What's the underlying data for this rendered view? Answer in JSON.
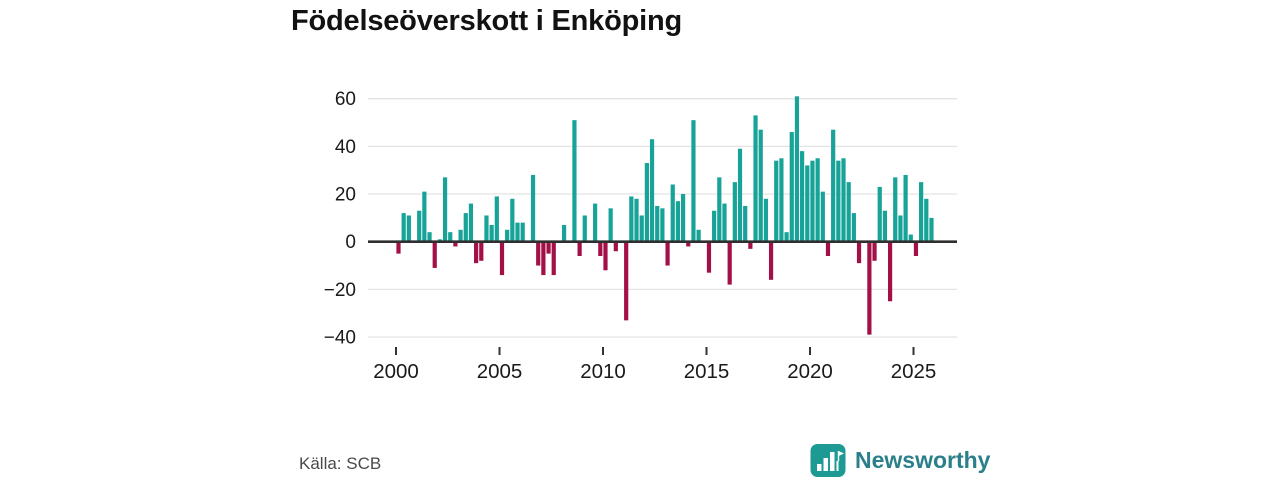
{
  "title": "Födelseöverskott i Enköping",
  "source": "Källa: SCB",
  "brand": {
    "name": "Newsworthy",
    "icon": "bar-chart-flag-icon",
    "icon_color": "#1d9a94",
    "text_color": "#2b7f8a"
  },
  "chart_data": {
    "type": "bar",
    "title": "Födelseöverskott i Enköping",
    "frequency": "quarterly",
    "start_period": "2000 Q1",
    "end_period": "2025 Q4",
    "x_tick_labels": [
      "2000",
      "2005",
      "2010",
      "2015",
      "2020",
      "2025"
    ],
    "y_ticks": [
      60,
      40,
      20,
      0,
      -20,
      -40
    ],
    "ylim": [
      -45,
      65
    ],
    "grid": "horizontal",
    "legend": "none",
    "positive_color": "#17a398",
    "negative_color": "#a31048",
    "zero_line_color": "#2f2f2f",
    "grid_color": "#e3e3e3",
    "values": [
      -5,
      12,
      11,
      0,
      13,
      21,
      4,
      -11,
      1,
      27,
      4,
      -2,
      5,
      12,
      16,
      -9,
      -8,
      11,
      7,
      19,
      -14,
      5,
      18,
      8,
      8,
      0,
      28,
      -10,
      -14,
      -5,
      -14,
      0,
      7,
      0,
      51,
      -6,
      11,
      0,
      16,
      -6,
      -12,
      14,
      -4,
      0,
      -33,
      19,
      18,
      11,
      33,
      43,
      15,
      14,
      -10,
      24,
      17,
      20,
      -2,
      51,
      5,
      0,
      -13,
      13,
      27,
      16,
      -18,
      25,
      39,
      15,
      -3,
      53,
      47,
      18,
      -16,
      34,
      35,
      4,
      46,
      61,
      38,
      32,
      34,
      35,
      21,
      -6,
      47,
      34,
      35,
      25,
      12,
      -9,
      0,
      -39,
      -8,
      23,
      13,
      -25,
      27,
      11,
      28,
      3,
      -6,
      25,
      18,
      10
    ]
  }
}
